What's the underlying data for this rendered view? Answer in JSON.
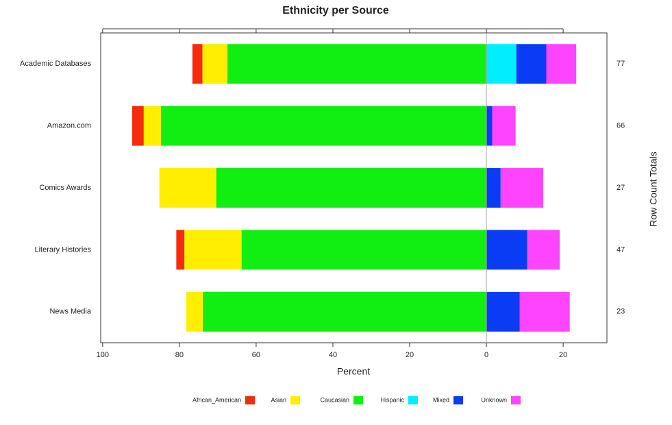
{
  "chart_data": {
    "type": "diverging-bar",
    "title": "Ethnicity per Source",
    "x_label": "Percent",
    "right_label": "Row Count Totals",
    "categories": [
      "Academic Databases",
      "Amazon.com",
      "Comics Awards",
      "Literary Histories",
      "News Media"
    ],
    "series": [
      {
        "name": "African_American",
        "color": "#f52a0f",
        "side": "left",
        "values": [
          2.6,
          3.0,
          0,
          2.1,
          0
        ]
      },
      {
        "name": "Asian",
        "color": "#ffee00",
        "side": "left",
        "values": [
          6.5,
          4.5,
          14.8,
          14.9,
          4.3
        ]
      },
      {
        "name": "Caucasian",
        "color": "#11ee11",
        "side": "left",
        "values": [
          67.5,
          84.8,
          70.4,
          63.8,
          73.9
        ]
      },
      {
        "name": "Hispanic",
        "color": "#00eeff",
        "side": "right",
        "values": [
          7.8,
          0,
          0,
          0,
          0
        ]
      },
      {
        "name": "Mixed",
        "color": "#0a3cf5",
        "side": "right",
        "values": [
          7.8,
          1.5,
          3.7,
          10.6,
          8.7
        ]
      },
      {
        "name": "Unknown",
        "color": "#ff44ff",
        "side": "right",
        "values": [
          7.8,
          6.1,
          11.1,
          8.5,
          13.0
        ]
      }
    ],
    "row_totals": [
      77,
      66,
      27,
      47,
      23
    ],
    "xlim": [
      -100.5,
      31.4
    ],
    "xticks": [
      {
        "value": -100,
        "label": "100"
      },
      {
        "value": -80,
        "label": "80"
      },
      {
        "value": -60,
        "label": "60"
      },
      {
        "value": -40,
        "label": "40"
      },
      {
        "value": -20,
        "label": "20"
      },
      0,
      20
    ],
    "legend_position": "bottom"
  }
}
